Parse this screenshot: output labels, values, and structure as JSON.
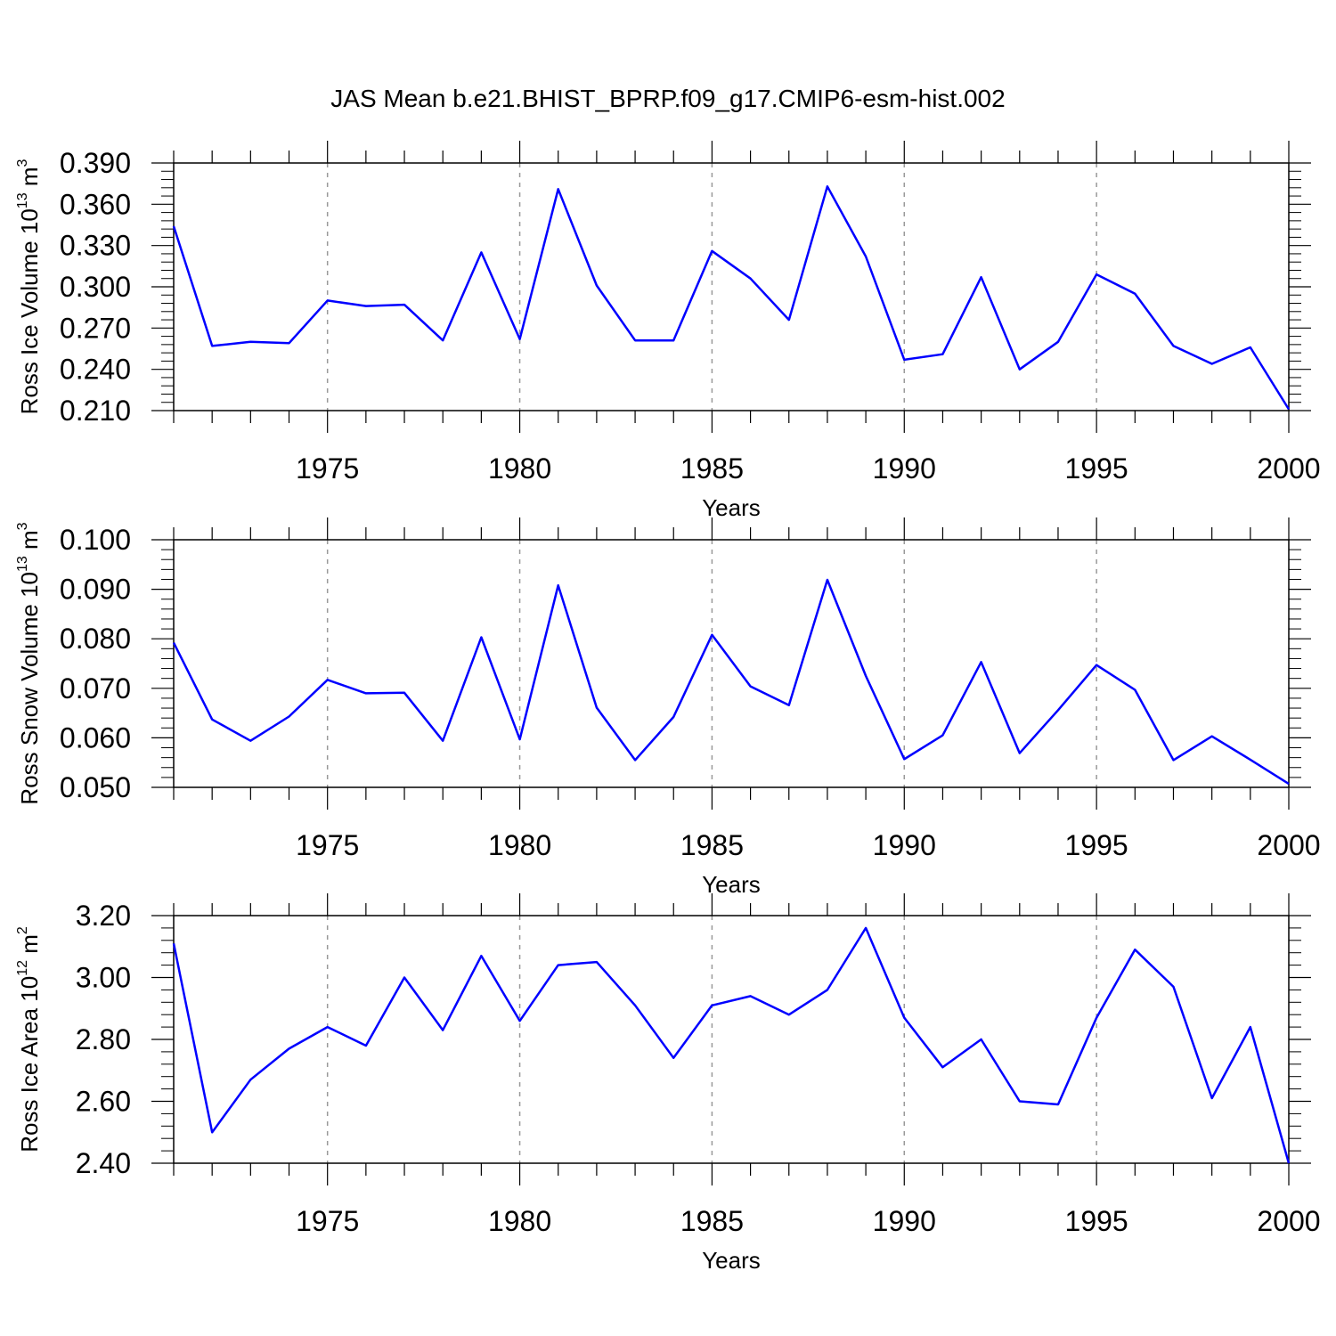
{
  "title": "JAS Mean b.e21.BHIST_BPRP.f09_g17.CMIP6-esm-hist.002",
  "line_color": "#0000ff",
  "chart_data": [
    {
      "type": "line",
      "ylabel": {
        "base": "Ross Ice Volume 10",
        "exp": "13",
        "unit": " m",
        "unit_exp": "3"
      },
      "xlabel": "Years",
      "xlim": [
        1971,
        2000
      ],
      "ylim": [
        0.21,
        0.39
      ],
      "xticks": [
        1975,
        1980,
        1985,
        1990,
        1995,
        2000
      ],
      "xtick_labels": [
        "1975",
        "1980",
        "1985",
        "1990",
        "1995",
        "2000"
      ],
      "yticks": [
        0.21,
        0.24,
        0.27,
        0.3,
        0.33,
        0.36,
        0.39
      ],
      "ytick_labels": [
        "0.210",
        "0.240",
        "0.270",
        "0.300",
        "0.330",
        "0.360",
        "0.390"
      ],
      "grid": "dashed vertical at major x ticks",
      "x": [
        1971,
        1972,
        1973,
        1974,
        1975,
        1976,
        1977,
        1978,
        1979,
        1980,
        1981,
        1982,
        1983,
        1984,
        1985,
        1986,
        1987,
        1988,
        1989,
        1990,
        1991,
        1992,
        1993,
        1994,
        1995,
        1996,
        1997,
        1998,
        1999,
        2000
      ],
      "y": [
        0.344,
        0.257,
        0.26,
        0.259,
        0.29,
        0.286,
        0.287,
        0.261,
        0.325,
        0.262,
        0.371,
        0.301,
        0.261,
        0.261,
        0.326,
        0.306,
        0.276,
        0.373,
        0.322,
        0.247,
        0.251,
        0.307,
        0.24,
        0.26,
        0.309,
        0.295,
        0.257,
        0.244,
        0.256,
        0.211
      ]
    },
    {
      "type": "line",
      "ylabel": {
        "base": "Ross Snow Volume 10",
        "exp": "13",
        "unit": " m",
        "unit_exp": "3"
      },
      "xlabel": "Years",
      "xlim": [
        1971,
        2000
      ],
      "ylim": [
        0.05,
        0.1
      ],
      "xticks": [
        1975,
        1980,
        1985,
        1990,
        1995,
        2000
      ],
      "xtick_labels": [
        "1975",
        "1980",
        "1985",
        "1990",
        "1995",
        "2000"
      ],
      "yticks": [
        0.05,
        0.06,
        0.07,
        0.08,
        0.09,
        0.1
      ],
      "ytick_labels": [
        "0.050",
        "0.060",
        "0.070",
        "0.080",
        "0.090",
        "0.100"
      ],
      "grid": "dashed vertical at major x ticks",
      "x": [
        1971,
        1972,
        1973,
        1974,
        1975,
        1976,
        1977,
        1978,
        1979,
        1980,
        1981,
        1982,
        1983,
        1984,
        1985,
        1986,
        1987,
        1988,
        1989,
        1990,
        1991,
        1992,
        1993,
        1994,
        1995,
        1996,
        1997,
        1998,
        1999,
        2000
      ],
      "y": [
        0.0792,
        0.0637,
        0.0594,
        0.0643,
        0.0717,
        0.069,
        0.0691,
        0.0594,
        0.0803,
        0.0597,
        0.0908,
        0.0661,
        0.0555,
        0.0642,
        0.0808,
        0.0704,
        0.0666,
        0.0919,
        0.0725,
        0.0557,
        0.0605,
        0.0753,
        0.0569,
        0.0656,
        0.0747,
        0.0697,
        0.0555,
        0.0603,
        0.0556,
        0.0507
      ]
    },
    {
      "type": "line",
      "ylabel": {
        "base": "Ross Ice Area 10",
        "exp": "12",
        "unit": " m",
        "unit_exp": "2"
      },
      "xlabel": "Years",
      "xlim": [
        1971,
        2000
      ],
      "ylim": [
        2.4,
        3.2
      ],
      "xticks": [
        1975,
        1980,
        1985,
        1990,
        1995,
        2000
      ],
      "xtick_labels": [
        "1975",
        "1980",
        "1985",
        "1990",
        "1995",
        "2000"
      ],
      "yticks": [
        2.4,
        2.6,
        2.8,
        3.0,
        3.2
      ],
      "ytick_labels": [
        "2.40",
        "2.60",
        "2.80",
        "3.00",
        "3.20"
      ],
      "grid": "dashed vertical at major x ticks",
      "x": [
        1971,
        1972,
        1973,
        1974,
        1975,
        1976,
        1977,
        1978,
        1979,
        1980,
        1981,
        1982,
        1983,
        1984,
        1985,
        1986,
        1987,
        1988,
        1989,
        1990,
        1991,
        1992,
        1993,
        1994,
        1995,
        1996,
        1997,
        1998,
        1999,
        2000
      ],
      "y": [
        3.11,
        2.5,
        2.67,
        2.77,
        2.84,
        2.78,
        3.0,
        2.83,
        3.07,
        2.86,
        3.04,
        3.05,
        2.91,
        2.74,
        2.91,
        2.94,
        2.88,
        2.96,
        3.16,
        2.87,
        2.71,
        2.8,
        2.6,
        2.59,
        2.87,
        3.09,
        2.97,
        2.61,
        2.84,
        2.4
      ]
    }
  ]
}
